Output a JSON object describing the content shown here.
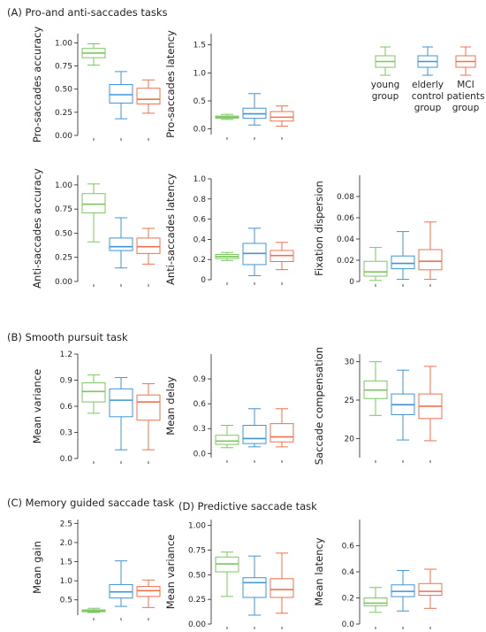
{
  "colors": {
    "young": "#7cc760",
    "elderly": "#3e95d8",
    "mci": "#f1704e"
  },
  "sections": [
    {
      "id": "A",
      "title": "(A) Pro-and anti-saccades tasks"
    },
    {
      "id": "B",
      "title": "(B) Smooth pursuit task"
    },
    {
      "id": "C",
      "title": "(C) Memory guided saccade task"
    },
    {
      "id": "D",
      "title": "(D) Predictive saccade task"
    }
  ],
  "legend": [
    {
      "key": "young",
      "lines": [
        "young",
        "group"
      ]
    },
    {
      "key": "elderly",
      "lines": [
        "elderly",
        "control",
        "group"
      ]
    },
    {
      "key": "mci",
      "lines": [
        "MCI",
        "patients",
        "group"
      ]
    }
  ],
  "chart_data": [
    {
      "type": "box",
      "ylabel": "Pro-saccades accuracy",
      "ylim": [
        0,
        1.1
      ],
      "ticks": [
        0,
        0.25,
        0.5,
        0.75,
        1.0
      ],
      "tick_labels": [
        "0.00",
        "0.25",
        "0.50",
        "0.75",
        "1.00"
      ],
      "series": [
        {
          "group": "young",
          "whisker_low": 0.76,
          "q1": 0.84,
          "median": 0.89,
          "q3": 0.94,
          "whisker_high": 0.99
        },
        {
          "group": "elderly",
          "whisker_low": 0.18,
          "q1": 0.35,
          "median": 0.44,
          "q3": 0.55,
          "whisker_high": 0.69
        },
        {
          "group": "mci",
          "whisker_low": 0.24,
          "q1": 0.34,
          "median": 0.39,
          "q3": 0.51,
          "whisker_high": 0.6
        }
      ]
    },
    {
      "type": "box",
      "ylabel": "Pro-saccades latency",
      "ylim": [
        -0.1,
        1.7
      ],
      "ticks": [
        0,
        0.5,
        1.0,
        1.5
      ],
      "tick_labels": [
        "0.0",
        "0.5",
        "1.0",
        "1.5"
      ],
      "series": [
        {
          "group": "young",
          "whisker_low": 0.17,
          "q1": 0.19,
          "median": 0.21,
          "q3": 0.23,
          "whisker_high": 0.26
        },
        {
          "group": "elderly",
          "whisker_low": 0.07,
          "q1": 0.19,
          "median": 0.27,
          "q3": 0.37,
          "whisker_high": 0.63
        },
        {
          "group": "mci",
          "whisker_low": 0.05,
          "q1": 0.14,
          "median": 0.21,
          "q3": 0.31,
          "whisker_high": 0.41
        }
      ]
    },
    {
      "type": "box",
      "ylabel": "Anti-saccades accuracy",
      "ylim": [
        0,
        1.1
      ],
      "ticks": [
        0,
        0.25,
        0.5,
        0.75,
        1.0
      ],
      "tick_labels": [
        "0.00",
        "0.25",
        "0.50",
        "0.75",
        "1.00"
      ],
      "series": [
        {
          "group": "young",
          "whisker_low": 0.41,
          "q1": 0.71,
          "median": 0.8,
          "q3": 0.91,
          "whisker_high": 1.01
        },
        {
          "group": "elderly",
          "whisker_low": 0.14,
          "q1": 0.32,
          "median": 0.36,
          "q3": 0.45,
          "whisker_high": 0.66
        },
        {
          "group": "mci",
          "whisker_low": 0.18,
          "q1": 0.29,
          "median": 0.36,
          "q3": 0.45,
          "whisker_high": 0.55
        }
      ]
    },
    {
      "type": "box",
      "ylabel": "Anti-saccades latency",
      "ylim": [
        0,
        1.0
      ],
      "ticks": [
        0,
        0.2,
        0.4,
        0.6,
        0.8,
        1.0
      ],
      "tick_labels": [
        "0",
        "0.2",
        "0.4",
        "0.6",
        "0.8",
        "1.0"
      ],
      "series": [
        {
          "group": "young",
          "whisker_low": 0.19,
          "q1": 0.21,
          "median": 0.23,
          "q3": 0.25,
          "whisker_high": 0.27
        },
        {
          "group": "elderly",
          "whisker_low": 0.04,
          "q1": 0.15,
          "median": 0.26,
          "q3": 0.36,
          "whisker_high": 0.51
        },
        {
          "group": "mci",
          "whisker_low": 0.1,
          "q1": 0.18,
          "median": 0.24,
          "q3": 0.29,
          "whisker_high": 0.37
        }
      ]
    },
    {
      "type": "box",
      "ylabel": "Fixation dispersion",
      "ylim": [
        0,
        0.1
      ],
      "ticks": [
        0,
        0.02,
        0.04,
        0.06,
        0.08
      ],
      "tick_labels": [
        "0",
        "0.02",
        "0.04",
        "0.06",
        "0.08"
      ],
      "series": [
        {
          "group": "young",
          "whisker_low": 0.001,
          "q1": 0.005,
          "median": 0.009,
          "q3": 0.019,
          "whisker_high": 0.032
        },
        {
          "group": "elderly",
          "whisker_low": 0.002,
          "q1": 0.012,
          "median": 0.017,
          "q3": 0.024,
          "whisker_high": 0.047
        },
        {
          "group": "mci",
          "whisker_low": 0.002,
          "q1": 0.011,
          "median": 0.019,
          "q3": 0.03,
          "whisker_high": 0.056
        }
      ]
    },
    {
      "type": "box",
      "ylabel": "Mean variance",
      "ylim": [
        0,
        1.2
      ],
      "ticks": [
        0,
        0.3,
        0.6,
        0.9,
        1.2
      ],
      "tick_labels": [
        "0.0",
        "0.3",
        "0.6",
        "0.9",
        "1.2"
      ],
      "series": [
        {
          "group": "young",
          "whisker_low": 0.52,
          "q1": 0.65,
          "median": 0.77,
          "q3": 0.87,
          "whisker_high": 0.96
        },
        {
          "group": "elderly",
          "whisker_low": 0.1,
          "q1": 0.48,
          "median": 0.67,
          "q3": 0.8,
          "whisker_high": 0.93
        },
        {
          "group": "mci",
          "whisker_low": 0.1,
          "q1": 0.44,
          "median": 0.65,
          "q3": 0.73,
          "whisker_high": 0.86
        }
      ]
    },
    {
      "type": "box",
      "ylabel": "Mean delay",
      "ylim": [
        -0.05,
        1.2
      ],
      "ticks": [
        0,
        0.3,
        0.6,
        0.9
      ],
      "tick_labels": [
        "0.0",
        "0.3",
        "0.6",
        "0.9"
      ],
      "series": [
        {
          "group": "young",
          "whisker_low": 0.07,
          "q1": 0.11,
          "median": 0.15,
          "q3": 0.22,
          "whisker_high": 0.34
        },
        {
          "group": "elderly",
          "whisker_low": 0.08,
          "q1": 0.12,
          "median": 0.18,
          "q3": 0.34,
          "whisker_high": 0.54
        },
        {
          "group": "mci",
          "whisker_low": 0.08,
          "q1": 0.14,
          "median": 0.2,
          "q3": 0.36,
          "whisker_high": 0.54
        }
      ]
    },
    {
      "type": "box",
      "ylabel": "Saccade compensation",
      "ylim": [
        17.5,
        31
      ],
      "ticks": [
        20,
        25,
        30
      ],
      "tick_labels": [
        "20",
        "25",
        "30"
      ],
      "series": [
        {
          "group": "young",
          "whisker_low": 23,
          "q1": 25.2,
          "median": 26.3,
          "q3": 27.5,
          "whisker_high": 30
        },
        {
          "group": "elderly",
          "whisker_low": 19.8,
          "q1": 23.1,
          "median": 24.4,
          "q3": 25.8,
          "whisker_high": 28.9
        },
        {
          "group": "mci",
          "whisker_low": 19.7,
          "q1": 22.6,
          "median": 24.2,
          "q3": 25.8,
          "whisker_high": 29.4
        }
      ]
    },
    {
      "type": "box",
      "ylabel": "Mean gain",
      "ylim": [
        0.1,
        2.6
      ],
      "ticks": [
        0.5,
        1.0,
        1.5,
        2.0,
        2.5
      ],
      "tick_labels": [
        "0.5",
        "1.0",
        "1.5",
        "2.0",
        "2.5"
      ],
      "series": [
        {
          "group": "young",
          "whisker_low": 0.17,
          "q1": 0.19,
          "median": 0.21,
          "q3": 0.24,
          "whisker_high": 0.28
        },
        {
          "group": "elderly",
          "whisker_low": 0.33,
          "q1": 0.55,
          "median": 0.71,
          "q3": 0.9,
          "whisker_high": 1.52
        },
        {
          "group": "mci",
          "whisker_low": 0.3,
          "q1": 0.59,
          "median": 0.74,
          "q3": 0.85,
          "whisker_high": 1.02
        }
      ]
    },
    {
      "type": "box",
      "ylabel": "Mean variance",
      "ylim": [
        0,
        1.06
      ],
      "ticks": [
        0,
        0.25,
        0.5,
        0.75,
        1.0
      ],
      "tick_labels": [
        "0.00",
        "0.25",
        "0.50",
        "0.75",
        "1.00"
      ],
      "series": [
        {
          "group": "young",
          "whisker_low": 0.28,
          "q1": 0.53,
          "median": 0.61,
          "q3": 0.68,
          "whisker_high": 0.73
        },
        {
          "group": "elderly",
          "whisker_low": 0.09,
          "q1": 0.27,
          "median": 0.42,
          "q3": 0.47,
          "whisker_high": 0.69
        },
        {
          "group": "mci",
          "whisker_low": 0.11,
          "q1": 0.27,
          "median": 0.35,
          "q3": 0.46,
          "whisker_high": 0.72
        }
      ]
    },
    {
      "type": "box",
      "ylabel": "Mean latency",
      "ylim": [
        0,
        0.8
      ],
      "ticks": [
        0,
        0.2,
        0.4,
        0.6
      ],
      "tick_labels": [
        "0.0",
        "0.2",
        "0.4",
        "0.6"
      ],
      "series": [
        {
          "group": "young",
          "whisker_low": 0.09,
          "q1": 0.14,
          "median": 0.16,
          "q3": 0.2,
          "whisker_high": 0.28
        },
        {
          "group": "elderly",
          "whisker_low": 0.1,
          "q1": 0.21,
          "median": 0.25,
          "q3": 0.3,
          "whisker_high": 0.41
        },
        {
          "group": "mci",
          "whisker_low": 0.12,
          "q1": 0.22,
          "median": 0.25,
          "q3": 0.31,
          "whisker_high": 0.42
        }
      ]
    }
  ]
}
